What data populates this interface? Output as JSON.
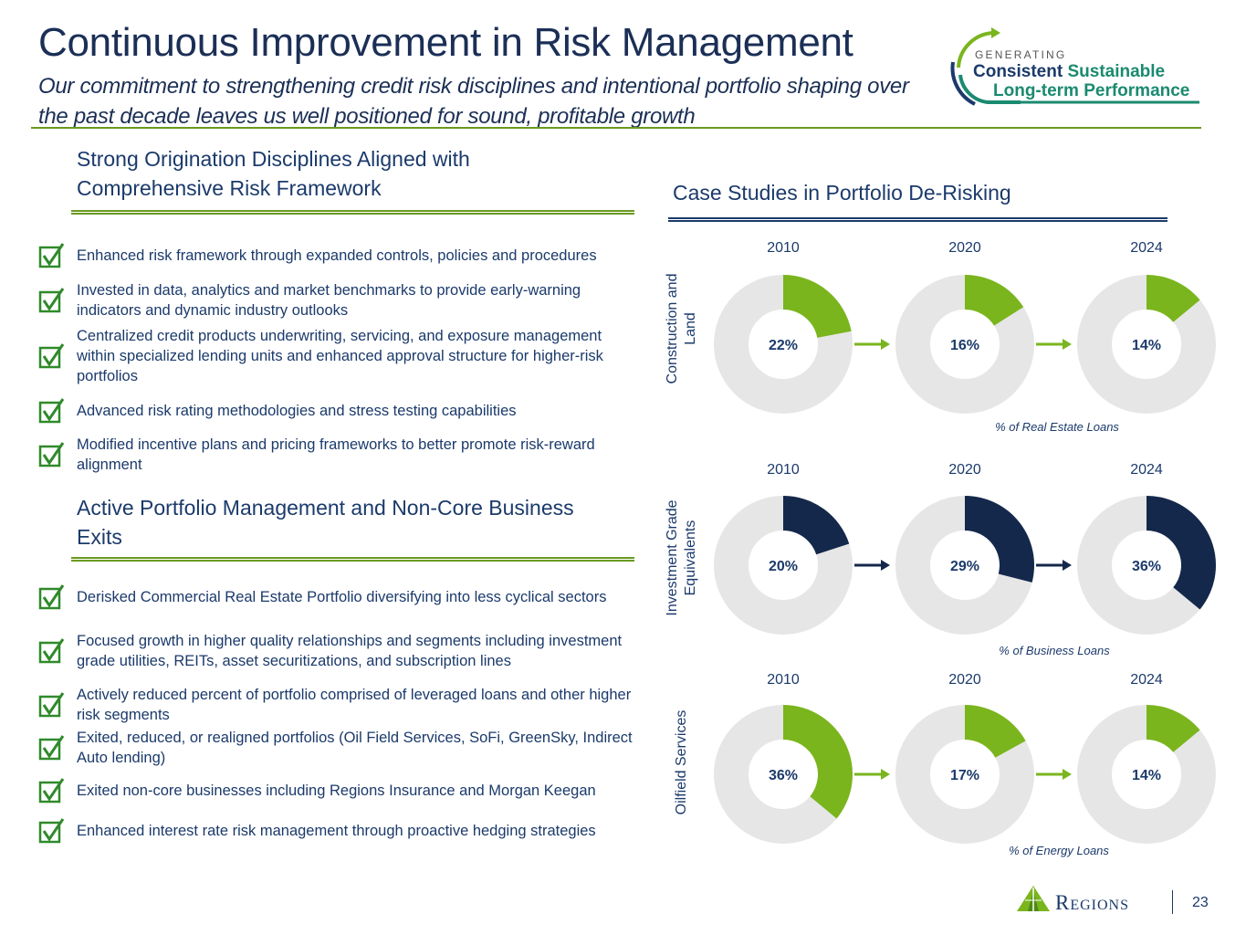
{
  "header": {
    "title": "Continuous Improvement in Risk Management",
    "subtitle": "Our commitment to strengthening credit risk disciplines and intentional portfolio shaping over the past decade leaves us well positioned for sound, profitable growth"
  },
  "badge": {
    "line1": "GENERATING",
    "line2a": "Consistent",
    "line2b": "Sustainable",
    "line3": "Long-term Performance"
  },
  "left": {
    "section1": {
      "title": "Strong Origination Disciplines Aligned with Comprehensive Risk Framework",
      "items": [
        "Enhanced risk framework through expanded controls, policies and procedures",
        "Invested in data, analytics and market benchmarks to provide early-warning indicators and dynamic industry outlooks",
        "Centralized credit products underwriting, servicing, and exposure management within specialized lending units and enhanced approval structure for higher-risk portfolios",
        "Advanced risk rating methodologies and stress testing capabilities",
        "Modified incentive plans and pricing frameworks to better promote risk-reward alignment"
      ]
    },
    "section2": {
      "title": "Active Portfolio Management and Non-Core Business Exits",
      "items": [
        "Derisked Commercial Real Estate Portfolio diversifying into less cyclical sectors",
        "Focused growth in higher quality relationships and segments including investment grade utilities, REITs, asset securitizations, and subscription lines",
        "Actively reduced percent of portfolio comprised of leveraged loans and other higher risk segments",
        "Exited, reduced, or realigned portfolios (Oil Field Services, SoFi, GreenSky, Indirect Auto lending)",
        "Exited non-core businesses including Regions Insurance and Morgan Keegan",
        "Enhanced interest rate risk management through proactive hedging strategies"
      ]
    }
  },
  "case_studies": {
    "title": "Case Studies in Portfolio De-Risking"
  },
  "chart_data": [
    {
      "type": "pie",
      "row_label": "Construction and Land",
      "categories": [
        "2010",
        "2020",
        "2024"
      ],
      "values": [
        22,
        16,
        14
      ],
      "labels": [
        "22%",
        "16%",
        "14%"
      ],
      "unit": "% of Real Estate Loans",
      "color": "#7ab51d"
    },
    {
      "type": "pie",
      "row_label": "Investment Grade Equivalents",
      "categories": [
        "2010",
        "2020",
        "2024"
      ],
      "values": [
        20,
        29,
        36
      ],
      "labels": [
        "20%",
        "29%",
        "36%"
      ],
      "unit": "% of Business Loans",
      "color": "#14284b"
    },
    {
      "type": "pie",
      "row_label": "Oilfield Services",
      "categories": [
        "2010",
        "2020",
        "2024"
      ],
      "values": [
        36,
        17,
        14
      ],
      "labels": [
        "36%",
        "17%",
        "14%"
      ],
      "unit": "% of Energy Loans",
      "color": "#7ab51d"
    }
  ],
  "colors": {
    "navy": "#1b3a6b",
    "green": "#6a9a1f",
    "donut_bg": "#e6e6e6"
  },
  "footer": {
    "brand": "Regions",
    "page": "23"
  }
}
